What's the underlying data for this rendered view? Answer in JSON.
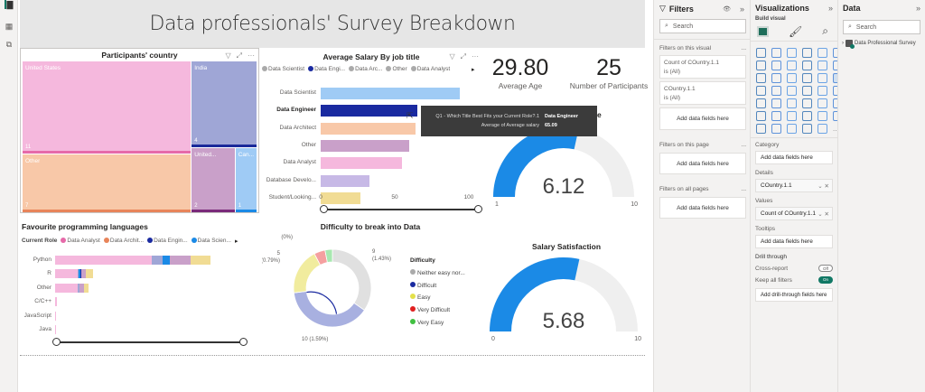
{
  "leftbar": {
    "icons": [
      "report-view-icon",
      "table-view-icon",
      "model-view-icon"
    ]
  },
  "banner": {
    "title": "Data professionals' Survey Breakdown"
  },
  "treemap": {
    "title": "Participants' country",
    "chart_data": {
      "type": "treemap",
      "title": "Participants' country",
      "items": [
        {
          "label": "United States",
          "value": 11,
          "color": "#f5b8dd",
          "accent": "#e66aa9"
        },
        {
          "label": "Other",
          "value": 7,
          "color": "#f8c8a8",
          "accent": "#e8845a"
        },
        {
          "label": "India",
          "value": 4,
          "color": "#9fa6d6",
          "accent": "#1a2a9a"
        },
        {
          "label": "United...",
          "value": 2,
          "color": "#c9a0c9",
          "accent": "#7a2a7a"
        },
        {
          "label": "Can...",
          "value": 1,
          "color": "#9fcbf5",
          "accent": "#1b8ae6"
        }
      ]
    }
  },
  "salary_chart": {
    "title": "Average Salary By job title",
    "legend": [
      {
        "label": "Data Scientist",
        "color": "#aaaaaa"
      },
      {
        "label": "Data Engi...",
        "color": "#1a2aa0"
      },
      {
        "label": "Data Arc...",
        "color": "#aaaaaa"
      },
      {
        "label": "Other",
        "color": "#aaaaaa"
      },
      {
        "label": "Data Analyst",
        "color": "#aaaaaa"
      }
    ],
    "chart_data": {
      "type": "bar",
      "orientation": "horizontal",
      "title": "Average Salary By job title",
      "categories": [
        "Data Scientist",
        "Data Engineer",
        "Data Architect",
        "Other",
        "Data Analyst",
        "Database Develo...",
        "Student/Looking..."
      ],
      "values": [
        94,
        65.09,
        64,
        60,
        55,
        33,
        27
      ],
      "colors": [
        "#9fcbf5",
        "#1a2aa0",
        "#f8c8a8",
        "#c9a0c9",
        "#f5b8dd",
        "#c7b9e6",
        "#f1dc94"
      ],
      "xticks": [
        "0",
        "50",
        "100"
      ],
      "xlim": [
        0,
        100
      ],
      "highlighted": "Data Engineer"
    },
    "tooltip": {
      "row1_label": "Q1 - Which Title Best Fits your Current Role?.1",
      "row1_value": "Data Engineer",
      "row2_label": "Average of Average salary",
      "row2_value": "65.09"
    }
  },
  "kpis": [
    {
      "value": "29.80",
      "label": "Average Age"
    },
    {
      "value": "25",
      "label": "Number of Participants"
    }
  ],
  "gauge1": {
    "title": "Work/Life Balance",
    "value_text": "6.12",
    "min": "1",
    "max": "10",
    "chart_data": {
      "type": "gauge",
      "value": 6.12,
      "min": 1,
      "max": 10
    }
  },
  "lang_chart": {
    "title": "Favourite programming languages",
    "legend_title": "Current Role",
    "legend": [
      {
        "label": "Data Analyst",
        "color": "#e66aa9"
      },
      {
        "label": "Data Archit...",
        "color": "#e8845a"
      },
      {
        "label": "Data Engin...",
        "color": "#1a2aa0"
      },
      {
        "label": "Data Scien...",
        "color": "#1b8ae6"
      }
    ],
    "chart_data": {
      "type": "bar",
      "orientation": "horizontal",
      "stacked": true,
      "title": "Favourite programming languages",
      "categories": [
        "Python",
        "R",
        "Other",
        "C/C++",
        "JavaScript",
        "Java"
      ],
      "series": [
        {
          "name": "Data Analyst",
          "color": "#f5b8dd",
          "values": [
            11,
            2.6,
            2.6,
            0.2,
            0.1,
            0.05
          ]
        },
        {
          "name": "Other",
          "color": "#9fa6d6",
          "values": [
            1.2,
            0.1,
            0.2,
            0,
            0,
            0
          ]
        },
        {
          "name": "Data Scientist",
          "color": "#1b8ae6",
          "values": [
            0.9,
            0.2,
            0,
            0,
            0,
            0
          ]
        },
        {
          "name": "Data Engineer",
          "color": "#1a2aa0",
          "values": [
            0,
            0.1,
            0,
            0,
            0,
            0
          ]
        },
        {
          "name": "Data Architect",
          "color": "#c9a0c9",
          "values": [
            2.3,
            0.5,
            0.5,
            0,
            0,
            0
          ]
        },
        {
          "name": "Student/Looking",
          "color": "#f1dc94",
          "values": [
            2.3,
            0.8,
            0.5,
            0,
            0,
            0
          ]
        }
      ]
    }
  },
  "donut": {
    "title": "Difficulty to break into Data",
    "legend_title": "Difficulty",
    "legend": [
      {
        "label": "Neither easy nor...",
        "color": "#aaaaaa"
      },
      {
        "label": "Difficult",
        "color": "#1a2aa0"
      },
      {
        "label": "Easy",
        "color": "#e3e04a"
      },
      {
        "label": "Very Difficult",
        "color": "#e02020"
      },
      {
        "label": "Very Easy",
        "color": "#40c040"
      }
    ],
    "chart_data": {
      "type": "pie",
      "donut": true,
      "title": "Difficulty to break into Data",
      "slices": [
        {
          "label": "Neither easy nor difficult",
          "value": 9,
          "pct_label": "9 (1.43%)",
          "color": "#e0e0e0"
        },
        {
          "label": "Difficult",
          "value": 10,
          "pct_label": "10 (1.59%)",
          "color": "#a8b0e0"
        },
        {
          "label": "Easy",
          "value": 5,
          "pct_label": "5 (0.79%)",
          "color": "#f1ec9e"
        },
        {
          "label": "Very Difficult",
          "value": 1.2,
          "pct_label": "(0%)",
          "color": "#f5a0a0"
        },
        {
          "label": "Very Easy",
          "value": 0.8,
          "pct_label": "",
          "color": "#a8e8b0"
        }
      ]
    }
  },
  "gauge2": {
    "title": "Salary Satisfaction",
    "value_text": "5.68",
    "min": "0",
    "max": "10",
    "chart_data": {
      "type": "gauge",
      "value": 5.68,
      "min": 0,
      "max": 10
    }
  },
  "filters": {
    "title": "Filters",
    "search_placeholder": "Search",
    "on_visual_label": "Filters on this visual",
    "visual_filters": [
      {
        "name": "Count of COuntry.1.1",
        "state": "is (All)"
      },
      {
        "name": "COuntry.1.1",
        "state": "is (All)"
      }
    ],
    "add_fields": "Add data fields here",
    "on_page_label": "Filters on this page",
    "on_all_label": "Filters on all pages",
    "more": "..."
  },
  "visualizations": {
    "title": "Visualizations",
    "build_visual": "Build visual",
    "category_label": "Category",
    "add_fields": "Add data fields here",
    "details_label": "Details",
    "details_value": "COuntry.1.1",
    "values_label": "Values",
    "values_value": "Count of COuntry.1.1",
    "tooltips_label": "Tooltips",
    "drill_label": "Drill through",
    "cross_report": "Cross-report",
    "cross_state": "Off",
    "keep_filters": "Keep all filters",
    "keep_state": "On",
    "add_drill": "Add drill-through fields here",
    "more_visuals": "..."
  },
  "data_pane": {
    "title": "Data",
    "search_placeholder": "Search",
    "tables": [
      "Data Professional Survey"
    ]
  }
}
